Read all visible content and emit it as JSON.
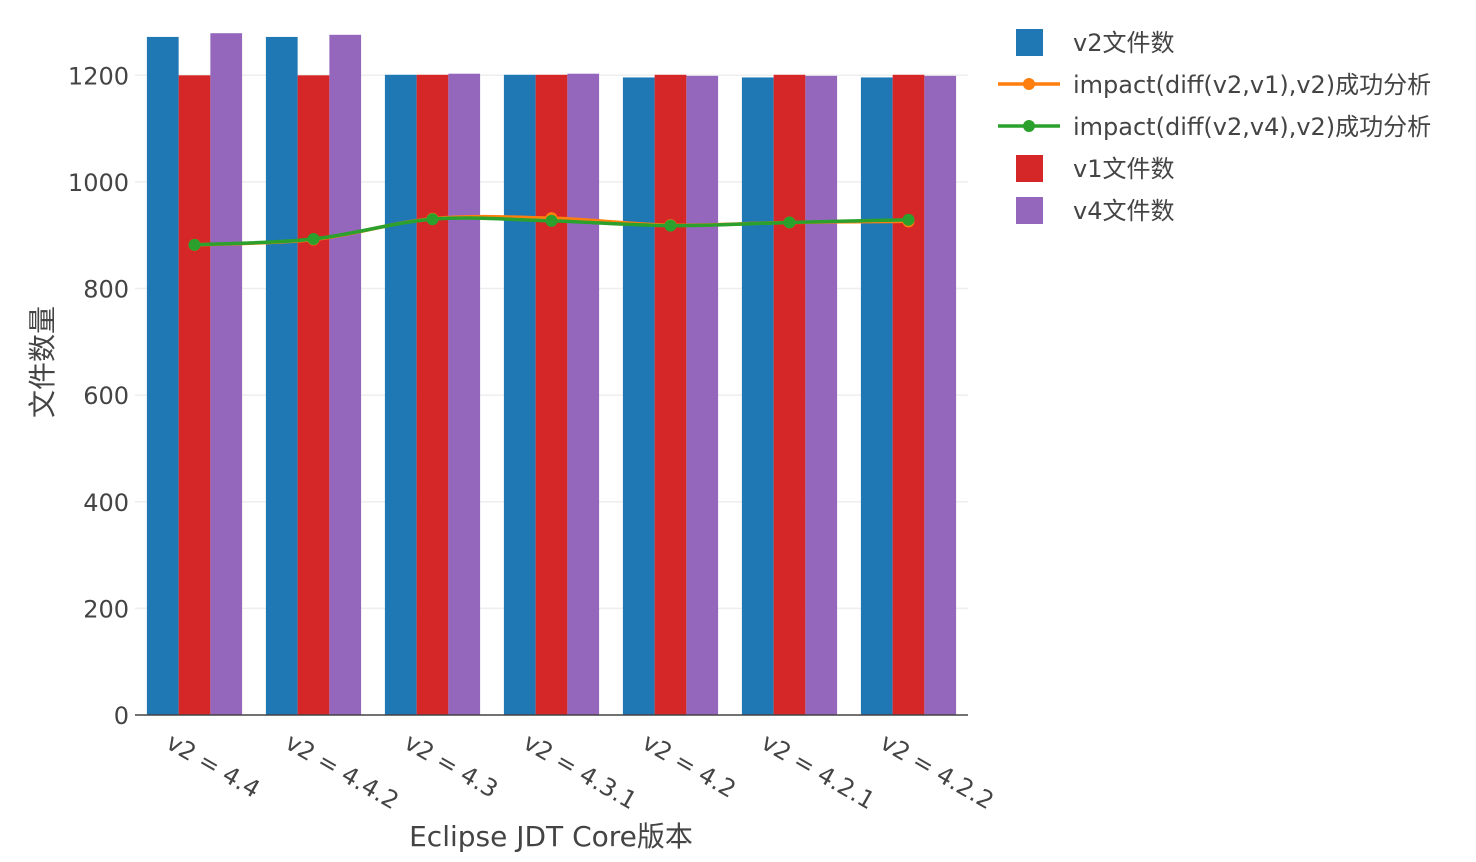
{
  "chart_data": {
    "type": "bar",
    "xlabel": "Eclipse JDT Core版本",
    "ylabel": "文件数量",
    "ylim": [
      0,
      1285
    ],
    "yticks": [
      0,
      200,
      400,
      600,
      800,
      1000,
      1200
    ],
    "grid": true,
    "legend_position": "top-right",
    "categories": [
      "v2 = 4.4",
      "v2 = 4.4.2",
      "v2 = 4.3",
      "v2 = 4.3.1",
      "v2 = 4.2",
      "v2 = 4.2.1",
      "v2 = 4.2.2"
    ],
    "series": [
      {
        "name": "v2文件数",
        "kind": "bar",
        "color": "#1f77b4",
        "values": [
          1272,
          1272,
          1201,
          1201,
          1196,
          1196,
          1196
        ]
      },
      {
        "name": "v1文件数",
        "kind": "bar",
        "color": "#d62728",
        "values": [
          1200,
          1200,
          1201,
          1201,
          1201,
          1201,
          1201
        ]
      },
      {
        "name": "v4文件数",
        "kind": "bar",
        "color": "#9467bd",
        "values": [
          1279,
          1276,
          1203,
          1203,
          1199,
          1199,
          1199
        ]
      },
      {
        "name": "impact(diff(v2,v1),v2)成功分析",
        "kind": "line",
        "color": "#ff7f0e",
        "values": [
          882,
          892,
          931,
          932,
          919,
          924,
          926
        ]
      },
      {
        "name": "impact(diff(v2,v4),v2)成功分析",
        "kind": "line",
        "color": "#2ca02c",
        "values": [
          882,
          893,
          930,
          927,
          918,
          924,
          929
        ]
      }
    ],
    "legend_order": [
      0,
      3,
      4,
      1,
      2
    ]
  }
}
